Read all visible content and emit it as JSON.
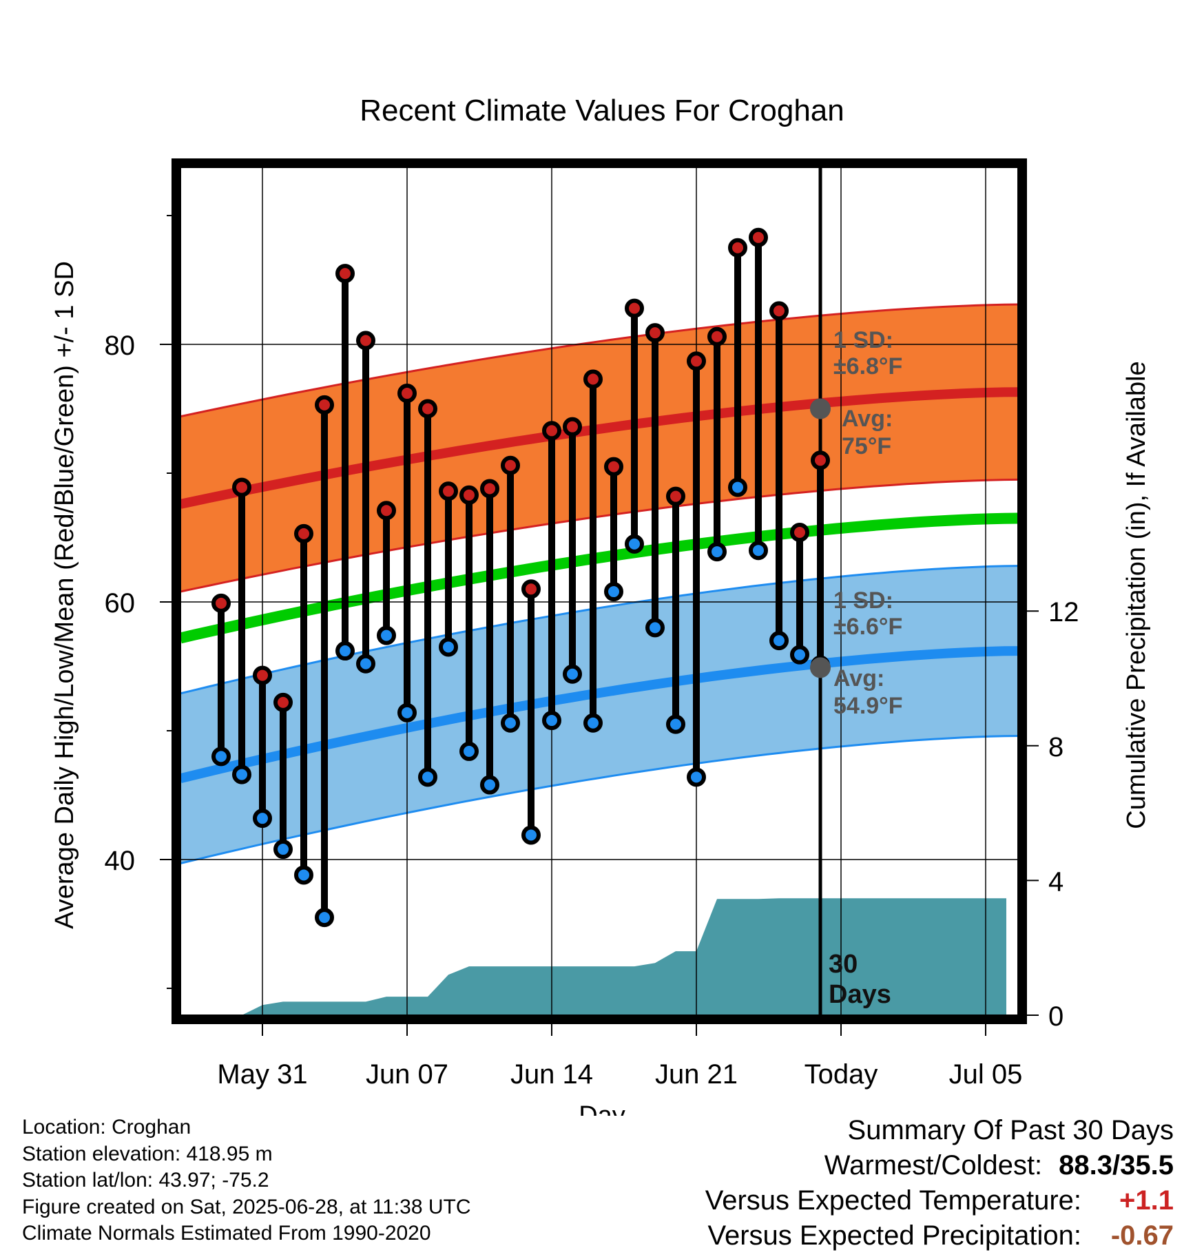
{
  "chart_data": {
    "type": "line",
    "title": "Recent Climate Values For Croghan",
    "xlabel": "Day",
    "ylabel": "Average Daily High/Low/Mean (Red/Blue/Green) +/- 1 SD",
    "y2label": "Cumulative Precipitation (in), If Available",
    "x_tick_labels": [
      "May 31",
      "Jun 07",
      "Jun 14",
      "Jun 21",
      "Today",
      "Jul 05"
    ],
    "ylim": [
      28,
      94
    ],
    "y_ticks": [
      40,
      60,
      80
    ],
    "y2lim": [
      0,
      24
    ],
    "y2_ticks": [
      0,
      4,
      8,
      12
    ],
    "today_label": "30\nDays",
    "annotations": {
      "high_sd": "1 SD:\n±6.8°F",
      "high_avg": "Avg:\n75°F",
      "low_sd": "1 SD:\n±6.6°F",
      "low_avg": "Avg:\n54.9°F"
    },
    "normal_high": {
      "start": 67.6,
      "end": 76.3,
      "sd": 6.8,
      "today_value": 75
    },
    "normal_low": {
      "start": 46.3,
      "end": 56.2,
      "sd": 6.6,
      "today_value": 54.9
    },
    "normal_mean": {
      "start": 57.2,
      "end": 66.5
    },
    "daily": {
      "day_offset": [
        -2,
        -1,
        0,
        1,
        2,
        3,
        4,
        5,
        6,
        7,
        8,
        9,
        10,
        11,
        12,
        13,
        14,
        15,
        16,
        17,
        18,
        19,
        20,
        21,
        22,
        23,
        24,
        25,
        26,
        27
      ],
      "high": [
        59.9,
        68.9,
        54.3,
        52.2,
        65.3,
        75.3,
        85.5,
        80.3,
        67.1,
        76.2,
        75.0,
        68.6,
        68.3,
        68.8,
        70.6,
        61.0,
        73.3,
        73.6,
        77.3,
        70.5,
        82.8,
        80.9,
        68.2,
        78.7,
        80.6,
        87.5,
        88.3,
        82.6,
        65.4,
        71.0
      ],
      "low": [
        48.0,
        46.6,
        43.2,
        40.8,
        38.8,
        35.5,
        56.2,
        55.2,
        57.4,
        51.4,
        46.4,
        56.5,
        48.4,
        45.8,
        50.6,
        41.9,
        50.8,
        54.4,
        50.6,
        60.8,
        64.5,
        58.0,
        50.5,
        46.4,
        63.9,
        68.9,
        64.0,
        57.0,
        55.9,
        55.1
      ]
    },
    "precip": {
      "day_offset": [
        -3,
        -1,
        0,
        1,
        2,
        3,
        4,
        5,
        6,
        7,
        8,
        9,
        10,
        11,
        12,
        13,
        14,
        15,
        16,
        17,
        18,
        19,
        20,
        21,
        22,
        23,
        24,
        25,
        26,
        27,
        28,
        36
      ],
      "cumulative": [
        0,
        0,
        0.3,
        0.4,
        0.4,
        0.4,
        0.4,
        0.4,
        0.55,
        0.55,
        0.55,
        1.2,
        1.45,
        1.45,
        1.45,
        1.45,
        1.45,
        1.45,
        1.45,
        1.45,
        1.45,
        1.55,
        1.9,
        1.9,
        3.45,
        3.45,
        3.45,
        3.47,
        3.47,
        3.47,
        3.47,
        3.47
      ]
    },
    "colors": {
      "high_band": "#f47a30",
      "high_line": "#d42121",
      "low_band": "#86c0e8",
      "low_line": "#1e8cf0",
      "mean_line": "#00cc00",
      "precip_fill": "#4a9aa5",
      "high_marker": "#c8201e",
      "low_marker": "#1e8cf0",
      "annotation": "#555555"
    },
    "grid": true
  },
  "footer": {
    "location": "Location: Croghan",
    "elevation": "Station elevation: 418.95 m",
    "latlon": "Station lat/lon: 43.97; -75.2",
    "created": "Figure created on Sat, 2025-06-28, at 11:38 UTC",
    "normals": "Climate Normals Estimated From 1990-2020"
  },
  "summary": {
    "heading": "Summary Of Past 30 Days",
    "warm_cold_label": "Warmest/Coldest:",
    "warm_cold_value": "88.3/35.5",
    "temp_label": "Versus Expected Temperature:",
    "temp_value": "+1.1",
    "temp_color": "#cc2222",
    "precip_label": "Versus Expected Precipitation:",
    "precip_value": "-0.67",
    "precip_color": "#a0522d"
  }
}
